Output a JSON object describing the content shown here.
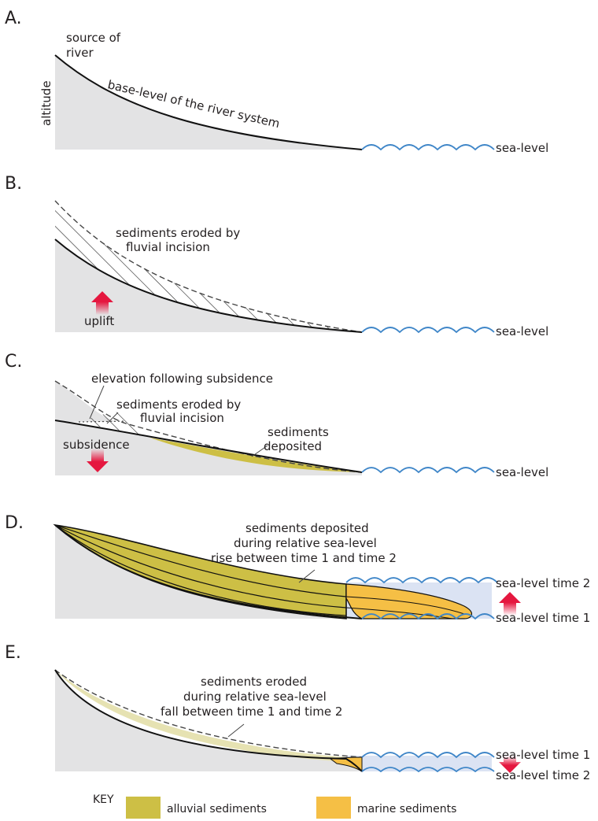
{
  "panels": {
    "a": {
      "letter": "A.",
      "source": [
        "source of",
        "river"
      ],
      "altitude": "altitude",
      "base_level": "base-level of the river system",
      "sea_level": "sea-level"
    },
    "b": {
      "letter": "B.",
      "eroded": [
        "sediments eroded by",
        "fluvial incision"
      ],
      "uplift": "uplift",
      "sea_level": "sea-level"
    },
    "c": {
      "letter": "C.",
      "elevation": "elevation following subsidence",
      "eroded": [
        "sediments eroded by",
        "fluvial incision"
      ],
      "deposited": [
        "sediments",
        "deposited"
      ],
      "subsidence": "subsidence",
      "sea_level": "sea-level"
    },
    "d": {
      "letter": "D.",
      "deposited": [
        "sediments deposited",
        "during relative sea-level",
        "rise between time 1 and time 2"
      ],
      "sea_level_time_2": "sea-level time 2",
      "sea_level_time_1": "sea-level time 1"
    },
    "e": {
      "letter": "E.",
      "eroded": [
        "sediments eroded",
        "during relative sea-level",
        "fall between time 1 and time 2"
      ],
      "sea_level_time_1": "sea-level time 1",
      "sea_level_time_2": "sea-level time 2"
    }
  },
  "key": {
    "title": "KEY",
    "alluvial": "alluvial sediments",
    "marine": "marine sediments"
  },
  "colors": {
    "ground": "#e3e3e4",
    "alluvial": "#cdbf45",
    "alluvial_dark": "#b9aa2e",
    "alluvial_light": "#e6e2b2",
    "marine": "#f5bf45",
    "sea": "#dbe3f3",
    "waves": "#3f86c8",
    "arrow": "#e5173f"
  }
}
